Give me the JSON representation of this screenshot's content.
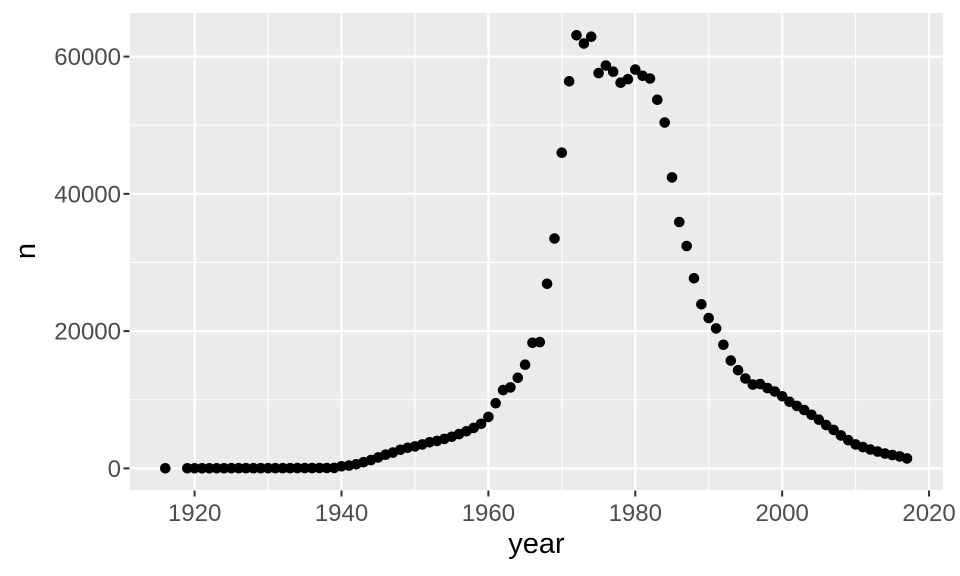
{
  "chart_data": {
    "type": "scatter",
    "title": "",
    "xlabel": "year",
    "ylabel": "n",
    "legend_position": "none",
    "grid": true,
    "panel_theme": "ggplot2-grey",
    "xlim": [
      1911.2,
      2021.9
    ],
    "ylim": [
      -3150,
      66350
    ],
    "x_ticks": {
      "values": [
        1920,
        1940,
        1960,
        1980,
        2000,
        2020
      ],
      "labels": [
        "1920",
        "1940",
        "1960",
        "1980",
        "2000",
        "2020"
      ]
    },
    "x_minor": [
      1930,
      1950,
      1970,
      1990,
      2010
    ],
    "y_ticks": {
      "values": [
        0,
        20000,
        40000,
        60000
      ],
      "labels": [
        "0",
        "20000",
        "40000",
        "60000"
      ]
    },
    "y_minor": [
      10000,
      30000,
      50000
    ],
    "points": [
      [
        1916,
        5
      ],
      [
        1919,
        10
      ],
      [
        1920,
        15
      ],
      [
        1921,
        15
      ],
      [
        1922,
        10
      ],
      [
        1923,
        15
      ],
      [
        1924,
        15
      ],
      [
        1925,
        20
      ],
      [
        1926,
        20
      ],
      [
        1927,
        20
      ],
      [
        1928,
        25
      ],
      [
        1929,
        25
      ],
      [
        1930,
        30
      ],
      [
        1931,
        25
      ],
      [
        1932,
        30
      ],
      [
        1933,
        30
      ],
      [
        1934,
        35
      ],
      [
        1935,
        40
      ],
      [
        1936,
        45
      ],
      [
        1937,
        50
      ],
      [
        1938,
        60
      ],
      [
        1939,
        70
      ],
      [
        1940,
        300
      ],
      [
        1941,
        400
      ],
      [
        1942,
        600
      ],
      [
        1943,
        900
      ],
      [
        1944,
        1200
      ],
      [
        1945,
        1600
      ],
      [
        1946,
        2000
      ],
      [
        1947,
        2300
      ],
      [
        1948,
        2700
      ],
      [
        1949,
        3000
      ],
      [
        1950,
        3200
      ],
      [
        1951,
        3500
      ],
      [
        1952,
        3800
      ],
      [
        1953,
        4000
      ],
      [
        1954,
        4300
      ],
      [
        1955,
        4600
      ],
      [
        1956,
        5000
      ],
      [
        1957,
        5400
      ],
      [
        1958,
        5900
      ],
      [
        1959,
        6500
      ],
      [
        1960,
        7500
      ],
      [
        1961,
        9500
      ],
      [
        1962,
        11400
      ],
      [
        1963,
        11800
      ],
      [
        1964,
        13200
      ],
      [
        1965,
        15100
      ],
      [
        1966,
        18300
      ],
      [
        1967,
        18400
      ],
      [
        1968,
        26900
      ],
      [
        1969,
        33500
      ],
      [
        1970,
        46000
      ],
      [
        1971,
        56400
      ],
      [
        1972,
        63100
      ],
      [
        1973,
        61900
      ],
      [
        1974,
        62900
      ],
      [
        1975,
        57600
      ],
      [
        1976,
        58700
      ],
      [
        1977,
        57800
      ],
      [
        1978,
        56200
      ],
      [
        1979,
        56700
      ],
      [
        1980,
        58100
      ],
      [
        1981,
        57200
      ],
      [
        1982,
        56800
      ],
      [
        1983,
        53700
      ],
      [
        1984,
        50400
      ],
      [
        1985,
        42400
      ],
      [
        1986,
        35900
      ],
      [
        1987,
        32400
      ],
      [
        1988,
        27700
      ],
      [
        1989,
        23900
      ],
      [
        1990,
        21900
      ],
      [
        1991,
        20400
      ],
      [
        1992,
        18000
      ],
      [
        1993,
        15700
      ],
      [
        1994,
        14300
      ],
      [
        1995,
        13100
      ],
      [
        1996,
        12200
      ],
      [
        1997,
        12300
      ],
      [
        1998,
        11700
      ],
      [
        1999,
        11200
      ],
      [
        2000,
        10500
      ],
      [
        2001,
        9700
      ],
      [
        2002,
        9100
      ],
      [
        2003,
        8500
      ],
      [
        2004,
        7800
      ],
      [
        2005,
        7100
      ],
      [
        2006,
        6300
      ],
      [
        2007,
        5600
      ],
      [
        2008,
        4800
      ],
      [
        2009,
        4100
      ],
      [
        2010,
        3500
      ],
      [
        2011,
        3100
      ],
      [
        2012,
        2750
      ],
      [
        2013,
        2450
      ],
      [
        2014,
        2150
      ],
      [
        2015,
        1950
      ],
      [
        2016,
        1750
      ],
      [
        2017,
        1450
      ]
    ],
    "style": {
      "background": "#FFFFFF",
      "panel_bg": "#EBEBEB",
      "grid_major_color": "#FFFFFF",
      "grid_minor_color": "#FFFFFF",
      "point_color": "#000000",
      "point_radius": 5.3,
      "tick_mark_color": "#333333",
      "tick_label_color": "#4D4D4D",
      "axis_title_color": "#000000"
    }
  }
}
